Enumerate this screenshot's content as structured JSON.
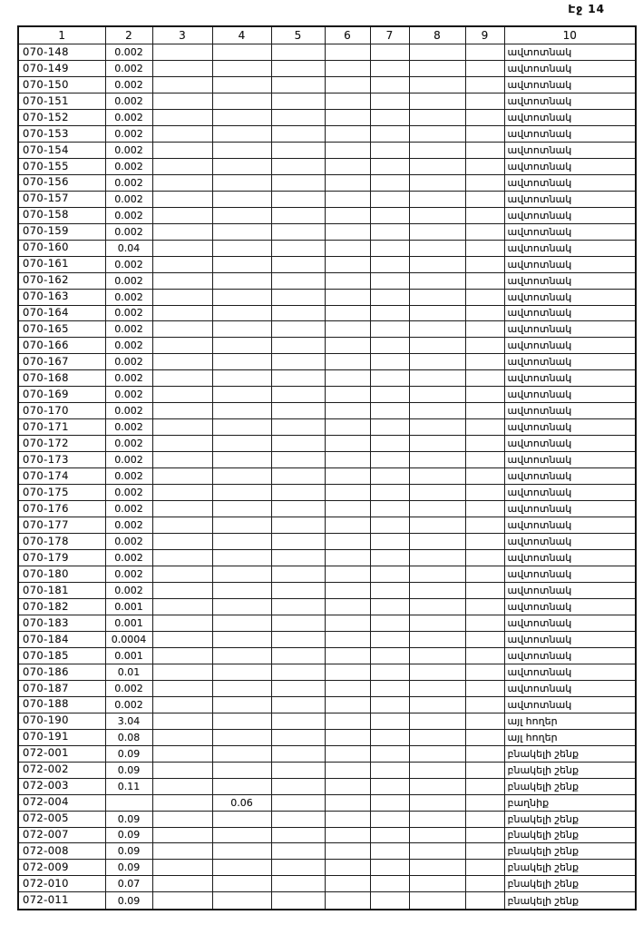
{
  "page": {
    "label": "Էջ 14",
    "background": "#ffffff",
    "ink": "#161616"
  },
  "table": {
    "column_headers": [
      "1",
      "2",
      "3",
      "4",
      "5",
      "6",
      "7",
      "8",
      "9",
      "10"
    ],
    "rows": [
      [
        "070-148",
        "0.002",
        "",
        "",
        "",
        "",
        "",
        "",
        "",
        "ավտոտնակ"
      ],
      [
        "070-149",
        "0.002",
        "",
        "",
        "",
        "",
        "",
        "",
        "",
        "ավտոտնակ"
      ],
      [
        "070-150",
        "0.002",
        "",
        "",
        "",
        "",
        "",
        "",
        "",
        "ավտոտնակ"
      ],
      [
        "070-151",
        "0.002",
        "",
        "",
        "",
        "",
        "",
        "",
        "",
        "ավտոտնակ"
      ],
      [
        "070-152",
        "0.002",
        "",
        "",
        "",
        "",
        "",
        "",
        "",
        "ավտոտնակ"
      ],
      [
        "070-153",
        "0.002",
        "",
        "",
        "",
        "",
        "",
        "",
        "",
        "ավտոտնակ"
      ],
      [
        "070-154",
        "0.002",
        "",
        "",
        "",
        "",
        "",
        "",
        "",
        "ավտոտնակ"
      ],
      [
        "070-155",
        "0.002",
        "",
        "",
        "",
        "",
        "",
        "",
        "",
        "ավտոտնակ"
      ],
      [
        "070-156",
        "0.002",
        "",
        "",
        "",
        "",
        "",
        "",
        "",
        "ավտոտնակ"
      ],
      [
        "070-157",
        "0.002",
        "",
        "",
        "",
        "",
        "",
        "",
        "",
        "ավտոտնակ"
      ],
      [
        "070-158",
        "0.002",
        "",
        "",
        "",
        "",
        "",
        "",
        "",
        "ավտոտնակ"
      ],
      [
        "070-159",
        "0.002",
        "",
        "",
        "",
        "",
        "",
        "",
        "",
        "ավտոտնակ"
      ],
      [
        "070-160",
        "0.04",
        "",
        "",
        "",
        "",
        "",
        "",
        "",
        "ավտոտնակ"
      ],
      [
        "070-161",
        "0.002",
        "",
        "",
        "",
        "",
        "",
        "",
        "",
        "ավտոտնակ"
      ],
      [
        "070-162",
        "0.002",
        "",
        "",
        "",
        "",
        "",
        "",
        "",
        "ավտոտնակ"
      ],
      [
        "070-163",
        "0.002",
        "",
        "",
        "",
        "",
        "",
        "",
        "",
        "ավտոտնակ"
      ],
      [
        "070-164",
        "0.002",
        "",
        "",
        "",
        "",
        "",
        "",
        "",
        "ավտոտնակ"
      ],
      [
        "070-165",
        "0.002",
        "",
        "",
        "",
        "",
        "",
        "",
        "",
        "ավտոտնակ"
      ],
      [
        "070-166",
        "0.002",
        "",
        "",
        "",
        "",
        "",
        "",
        "",
        "ավտոտնակ"
      ],
      [
        "070-167",
        "0.002",
        "",
        "",
        "",
        "",
        "",
        "",
        "",
        "ավտոտնակ"
      ],
      [
        "070-168",
        "0.002",
        "",
        "",
        "",
        "",
        "",
        "",
        "",
        "ավտոտնակ"
      ],
      [
        "070-169",
        "0.002",
        "",
        "",
        "",
        "",
        "",
        "",
        "",
        "ավտոտնակ"
      ],
      [
        "070-170",
        "0.002",
        "",
        "",
        "",
        "",
        "",
        "",
        "",
        "ավտոտնակ"
      ],
      [
        "070-171",
        "0.002",
        "",
        "",
        "",
        "",
        "",
        "",
        "",
        "ավտոտնակ"
      ],
      [
        "070-172",
        "0.002",
        "",
        "",
        "",
        "",
        "",
        "",
        "",
        "ավտոտնակ"
      ],
      [
        "070-173",
        "0.002",
        "",
        "",
        "",
        "",
        "",
        "",
        "",
        "ավտոտնակ"
      ],
      [
        "070-174",
        "0.002",
        "",
        "",
        "",
        "",
        "",
        "",
        "",
        "ավտոտնակ"
      ],
      [
        "070-175",
        "0.002",
        "",
        "",
        "",
        "",
        "",
        "",
        "",
        "ավտոտնակ"
      ],
      [
        "070-176",
        "0.002",
        "",
        "",
        "",
        "",
        "",
        "",
        "",
        "ավտոտնակ"
      ],
      [
        "070-177",
        "0.002",
        "",
        "",
        "",
        "",
        "",
        "",
        "",
        "ավտոտնակ"
      ],
      [
        "070-178",
        "0.002",
        "",
        "",
        "",
        "",
        "",
        "",
        "",
        "ավտոտնակ"
      ],
      [
        "070-179",
        "0.002",
        "",
        "",
        "",
        "",
        "",
        "",
        "",
        "ավտոտնակ"
      ],
      [
        "070-180",
        "0.002",
        "",
        "",
        "",
        "",
        "",
        "",
        "",
        "ավտոտնակ"
      ],
      [
        "070-181",
        "0.002",
        "",
        "",
        "",
        "",
        "",
        "",
        "",
        "ավտոտնակ"
      ],
      [
        "070-182",
        "0.001",
        "",
        "",
        "",
        "",
        "",
        "",
        "",
        "ավտոտնակ"
      ],
      [
        "070-183",
        "0.001",
        "",
        "",
        "",
        "",
        "",
        "",
        "",
        "ավտոտնակ"
      ],
      [
        "070-184",
        "0.0004",
        "",
        "",
        "",
        "",
        "",
        "",
        "",
        "ավտոտնակ"
      ],
      [
        "070-185",
        "0.001",
        "",
        "",
        "",
        "",
        "",
        "",
        "",
        "ավտոտնակ"
      ],
      [
        "070-186",
        "0.01",
        "",
        "",
        "",
        "",
        "",
        "",
        "",
        "ավտոտնակ"
      ],
      [
        "070-187",
        "0.002",
        "",
        "",
        "",
        "",
        "",
        "",
        "",
        "ավտոտնակ"
      ],
      [
        "070-188",
        "0.002",
        "",
        "",
        "",
        "",
        "",
        "",
        "",
        "ավտոտնակ"
      ],
      [
        "070-190",
        "3.04",
        "",
        "",
        "",
        "",
        "",
        "",
        "",
        "այլ հողեր"
      ],
      [
        "070-191",
        "0.08",
        "",
        "",
        "",
        "",
        "",
        "",
        "",
        "այլ հողեր"
      ],
      [
        "072-001",
        "0.09",
        "",
        "",
        "",
        "",
        "",
        "",
        "",
        "բնակելի շենք"
      ],
      [
        "072-002",
        "0.09",
        "",
        "",
        "",
        "",
        "",
        "",
        "",
        "բնակելի շենք"
      ],
      [
        "072-003",
        "0.11",
        "",
        "",
        "",
        "",
        "",
        "",
        "",
        "բնակելի շենք"
      ],
      [
        "072-004",
        "",
        "",
        "0.06",
        "",
        "",
        "",
        "",
        "",
        "բաղնիք"
      ],
      [
        "072-005",
        "0.09",
        "",
        "",
        "",
        "",
        "",
        "",
        "",
        "բնակելի շենք"
      ],
      [
        "072-007",
        "0.09",
        "",
        "",
        "",
        "",
        "",
        "",
        "",
        "բնակելի շենք"
      ],
      [
        "072-008",
        "0.09",
        "",
        "",
        "",
        "",
        "",
        "",
        "",
        "բնակելի շենք"
      ],
      [
        "072-009",
        "0.09",
        "",
        "",
        "",
        "",
        "",
        "",
        "",
        "բնակելի շենք"
      ],
      [
        "072-010",
        "0.07",
        "",
        "",
        "",
        "",
        "",
        "",
        "",
        "բնակելի շենք"
      ],
      [
        "072-011",
        "0.09",
        "",
        "",
        "",
        "",
        "",
        "",
        "",
        "բնակելի շենք"
      ]
    ]
  }
}
